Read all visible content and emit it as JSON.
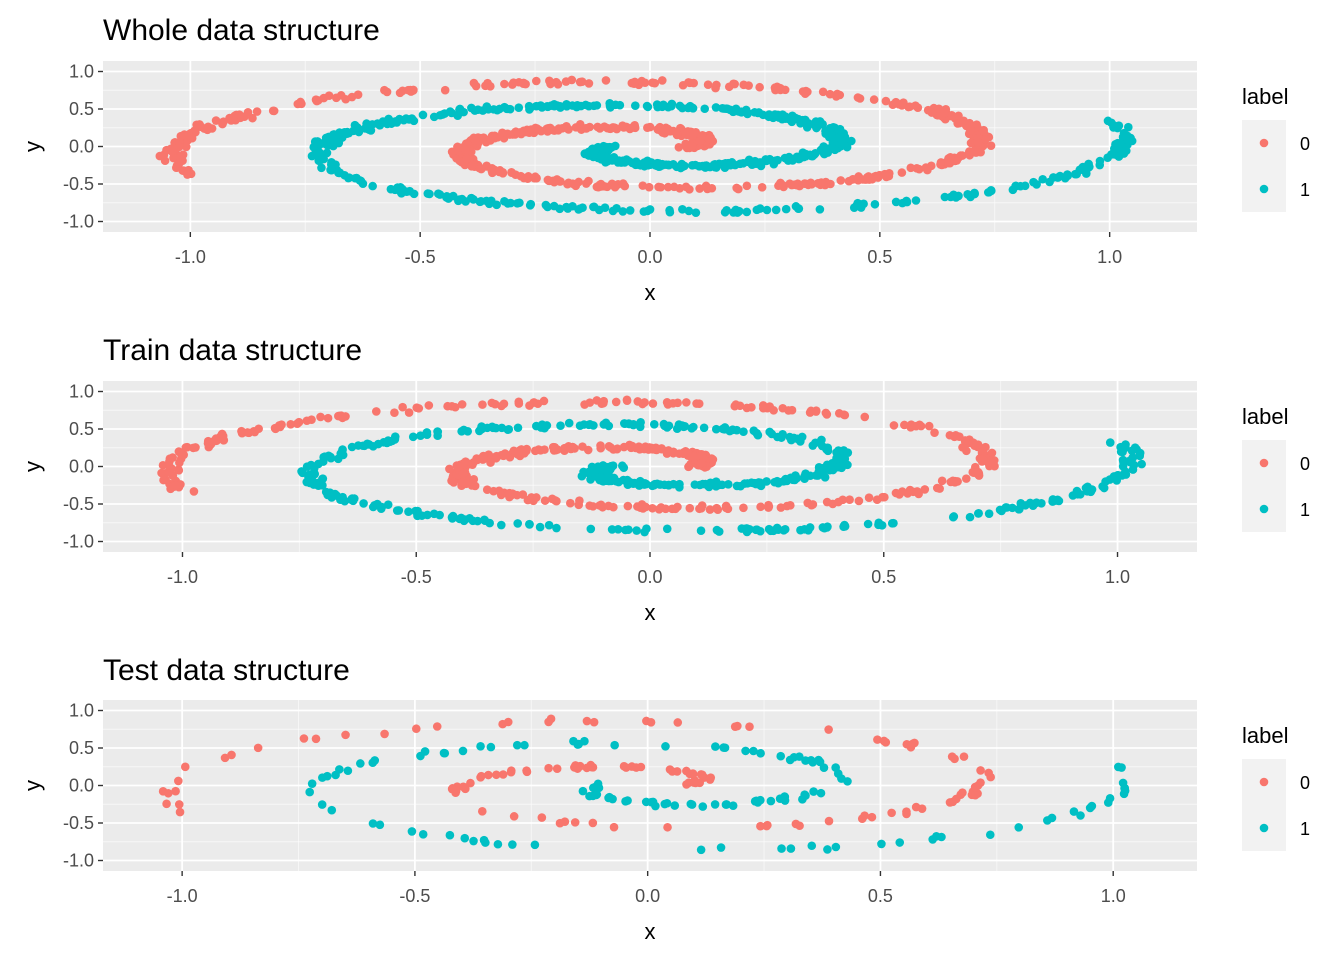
{
  "legend": {
    "title": "label",
    "entries": [
      {
        "label": "0",
        "color": "#F8766D"
      },
      {
        "label": "1",
        "color": "#00BFC4"
      }
    ]
  },
  "theme": {
    "panel_bg": "#EBEBEB",
    "grid_major": "#FFFFFF",
    "legend_key_bg": "#F2F2F2"
  },
  "chart_data": [
    {
      "type": "scatter",
      "title": "Whole data structure",
      "xlabel": "x",
      "ylabel": "y",
      "xlim": [
        -1.19,
        1.19
      ],
      "ylim": [
        -1.14,
        1.14
      ],
      "xticks": [
        -1.0,
        -0.5,
        0.0,
        0.5,
        1.0
      ],
      "xtick_labels": [
        "-1.0",
        "-0.5",
        "0.0",
        "0.5",
        "1.0"
      ],
      "yticks": [
        -1.0,
        -0.5,
        0.0,
        0.5,
        1.0
      ],
      "ytick_labels": [
        "-1.0",
        "-0.5",
        "0.0",
        "0.5",
        "1.0"
      ],
      "grid": true,
      "legend_position": "right",
      "series": [
        {
          "name": "0",
          "color": "#F8766D",
          "mode": "spiral",
          "n": 640,
          "seed": 11
        },
        {
          "name": "1",
          "color": "#00BFC4",
          "mode": "spiral",
          "n": 640,
          "seed": 23
        }
      ]
    },
    {
      "type": "scatter",
      "title": "Train data structure",
      "xlabel": "x",
      "ylabel": "y",
      "xlim": [
        -1.17,
        1.17
      ],
      "ylim": [
        -1.14,
        1.14
      ],
      "xticks": [
        -1.0,
        -0.5,
        0.0,
        0.5,
        1.0
      ],
      "xtick_labels": [
        "-1.0",
        "-0.5",
        "0.0",
        "0.5",
        "1.0"
      ],
      "yticks": [
        -1.0,
        -0.5,
        0.0,
        0.5,
        1.0
      ],
      "ytick_labels": [
        "-1.0",
        "-0.5",
        "0.0",
        "0.5",
        "1.0"
      ],
      "grid": true,
      "legend_position": "right",
      "series": [
        {
          "name": "0",
          "color": "#F8766D",
          "mode": "spiral",
          "n": 500,
          "seed": 37
        },
        {
          "name": "1",
          "color": "#00BFC4",
          "mode": "spiral",
          "n": 500,
          "seed": 41
        }
      ]
    },
    {
      "type": "scatter",
      "title": "Test data structure",
      "xlabel": "x",
      "ylabel": "y",
      "xlim": [
        -1.17,
        1.18
      ],
      "ylim": [
        -1.14,
        1.14
      ],
      "xticks": [
        -1.0,
        -0.5,
        0.0,
        0.5,
        1.0
      ],
      "xtick_labels": [
        "-1.0",
        "-0.5",
        "0.0",
        "0.5",
        "1.0"
      ],
      "yticks": [
        -1.0,
        -0.5,
        0.0,
        0.5,
        1.0
      ],
      "ytick_labels": [
        "-1.0",
        "-0.5",
        "0.0",
        "0.5",
        "1.0"
      ],
      "grid": true,
      "legend_position": "right",
      "series": [
        {
          "name": "0",
          "color": "#F8766D",
          "mode": "spiral",
          "n": 130,
          "seed": 53
        },
        {
          "name": "1",
          "color": "#00BFC4",
          "mode": "spiral",
          "n": 130,
          "seed": 67
        }
      ]
    }
  ]
}
